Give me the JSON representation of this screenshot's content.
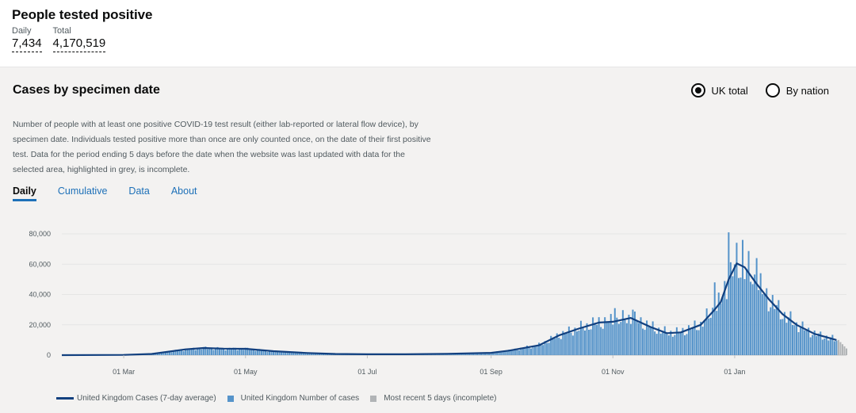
{
  "headline": {
    "title": "People tested positive",
    "daily_label": "Daily",
    "daily_value": "7,434",
    "total_label": "Total",
    "total_value": "4,170,519"
  },
  "card": {
    "title": "Cases by specimen date",
    "radios": [
      {
        "label": "UK total",
        "selected": true
      },
      {
        "label": "By nation",
        "selected": false
      }
    ],
    "description": "Number of people with at least one positive COVID-19 test result (either lab-reported or lateral flow device), by specimen date. Individuals tested positive more than once are only counted once, on the date of their first positive test. Data for the period ending 5 days before the date when the website was last updated with data for the selected area, highlighted in grey, is incomplete.",
    "tabs": [
      "Daily",
      "Cumulative",
      "Data",
      "About"
    ],
    "active_tab": "Daily"
  },
  "colors": {
    "line": "#12407f",
    "bars": "#5694ca",
    "incomplete": "#b1b4b6",
    "grid": "#e5e5e5"
  },
  "chart_data": {
    "type": "bar",
    "y_ticks": [
      "80,000",
      "60,000",
      "40,000",
      "20,000",
      "0"
    ],
    "ylim": [
      0,
      80000
    ],
    "x_ticks": [
      "01 Mar",
      "01 May",
      "01 Jul",
      "01 Sep",
      "01 Nov",
      "01 Jan"
    ],
    "x_tick_dates": [
      "2020-03-01",
      "2020-05-01",
      "2020-07-01",
      "2020-09-01",
      "2020-11-01",
      "2021-01-01"
    ],
    "xlim": [
      "2020-01-30",
      "2021-02-26"
    ],
    "average_points": [
      [
        "2020-01-30",
        0
      ],
      [
        "2020-03-01",
        150
      ],
      [
        "2020-03-15",
        800
      ],
      [
        "2020-04-01",
        3800
      ],
      [
        "2020-04-10",
        4700
      ],
      [
        "2020-04-20",
        4300
      ],
      [
        "2020-05-01",
        4200
      ],
      [
        "2020-05-15",
        2600
      ],
      [
        "2020-06-01",
        1400
      ],
      [
        "2020-06-15",
        800
      ],
      [
        "2020-07-01",
        550
      ],
      [
        "2020-07-20",
        600
      ],
      [
        "2020-08-10",
        900
      ],
      [
        "2020-09-01",
        1500
      ],
      [
        "2020-09-10",
        3000
      ],
      [
        "2020-09-25",
        6500
      ],
      [
        "2020-10-05",
        13000
      ],
      [
        "2020-10-15",
        17500
      ],
      [
        "2020-10-25",
        21500
      ],
      [
        "2020-11-01",
        22000
      ],
      [
        "2020-11-10",
        24500
      ],
      [
        "2020-11-20",
        18500
      ],
      [
        "2020-11-28",
        14500
      ],
      [
        "2020-12-05",
        15000
      ],
      [
        "2020-12-15",
        20000
      ],
      [
        "2020-12-22",
        30000
      ],
      [
        "2020-12-25",
        35000
      ],
      [
        "2020-12-29",
        50000
      ],
      [
        "2021-01-02",
        60500
      ],
      [
        "2021-01-06",
        58000
      ],
      [
        "2021-01-12",
        47000
      ],
      [
        "2021-01-18",
        37000
      ],
      [
        "2021-01-25",
        27000
      ],
      [
        "2021-02-01",
        20000
      ],
      [
        "2021-02-10",
        14000
      ],
      [
        "2021-02-21",
        10000
      ]
    ],
    "spikes": [
      [
        "2020-12-29",
        81000
      ],
      [
        "2021-01-05",
        76000
      ],
      [
        "2021-01-12",
        64000
      ],
      [
        "2020-11-02",
        31000
      ],
      [
        "2020-11-11",
        30000
      ],
      [
        "2020-12-22",
        48000
      ]
    ],
    "incomplete_from": "2021-02-22",
    "legend": [
      {
        "label": "United Kingdom Cases (7-day average)"
      },
      {
        "label": "United Kingdom Number of cases"
      },
      {
        "label": "Most recent 5 days (incomplete)"
      }
    ]
  }
}
